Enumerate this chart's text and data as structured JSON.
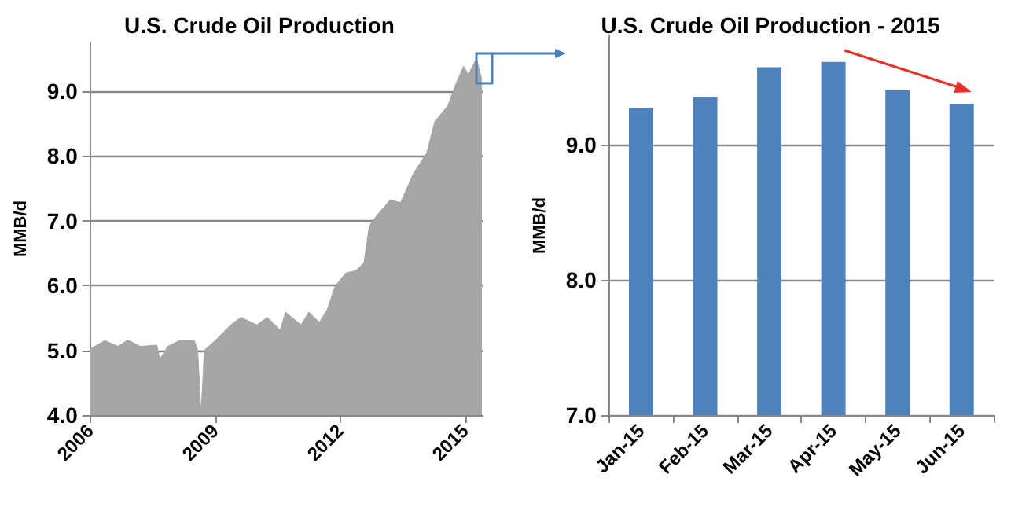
{
  "chart_data": [
    {
      "type": "area",
      "title": "U.S. Crude Oil Production",
      "ylabel": "MMB/d",
      "color": "#a6a6a6",
      "x": [
        2006,
        2006.35,
        2006.67,
        2006.9,
        2007.2,
        2007.6,
        2007.67,
        2007.86,
        2008.17,
        2008.5,
        2008.58,
        2008.66,
        2008.74,
        2009,
        2009.37,
        2009.62,
        2010,
        2010.25,
        2010.56,
        2010.69,
        2011.06,
        2011.25,
        2011.5,
        2011.69,
        2011.88,
        2012.13,
        2012.38,
        2012.57,
        2012.7,
        2012.88,
        2013.2,
        2013.45,
        2013.76,
        2014.08,
        2014.27,
        2014.58,
        2014.77,
        2014.96,
        2015.08,
        2015.27,
        2015.4
      ],
      "values": [
        5.02,
        5.15,
        5.06,
        5.16,
        5.06,
        5.08,
        4.86,
        5.06,
        5.16,
        5.15,
        5.0,
        4.02,
        5.0,
        5.15,
        5.39,
        5.51,
        5.39,
        5.51,
        5.31,
        5.59,
        5.39,
        5.59,
        5.43,
        5.63,
        5.99,
        6.19,
        6.23,
        6.35,
        6.92,
        7.08,
        7.32,
        7.28,
        7.73,
        8.05,
        8.53,
        8.77,
        9.1,
        9.38,
        9.26,
        9.5,
        9.18
      ],
      "xlim": [
        2006,
        2015.42
      ],
      "xticks": [
        2006,
        2009,
        2012,
        2015
      ],
      "ylim": [
        4,
        9.75
      ],
      "yticks": [
        {
          "value": 4,
          "label": "4.0"
        },
        {
          "value": 5,
          "label": "5.0"
        },
        {
          "value": 6,
          "label": "6.0"
        },
        {
          "value": 7,
          "label": "7.0"
        },
        {
          "value": 8,
          "label": "8.0"
        },
        {
          "value": 9,
          "label": "9.0"
        }
      ],
      "grid": "y"
    },
    {
      "type": "bar",
      "title": "U.S. Crude Oil Production - 2015",
      "ylabel": "MMB/d",
      "color": "#4f81bd",
      "categories": [
        "Jan-15",
        "Feb-15",
        "Mar-15",
        "Apr-15",
        "May-15",
        "Jun-15"
      ],
      "values": [
        9.27,
        9.35,
        9.57,
        9.61,
        9.4,
        9.3
      ],
      "ylim": [
        7,
        9.8
      ],
      "yticks": [
        {
          "value": 7,
          "label": "7.0"
        },
        {
          "value": 8,
          "label": "8.0"
        },
        {
          "value": 9,
          "label": "9.0"
        }
      ],
      "grid": "y"
    }
  ]
}
